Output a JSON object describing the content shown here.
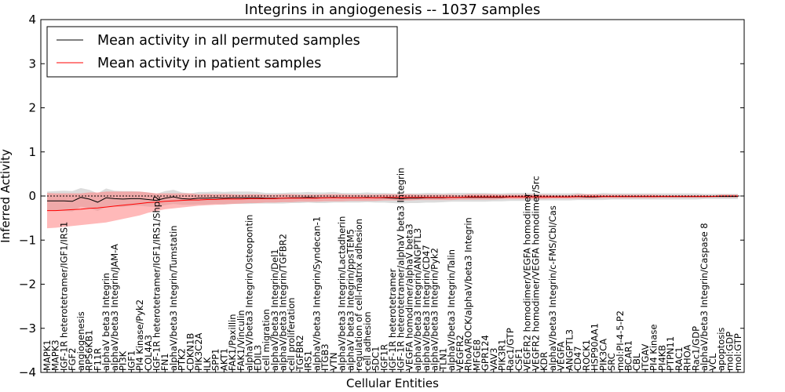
{
  "chart_data": {
    "type": "line",
    "title": "Integrins in angiogenesis -- 1037 samples",
    "xlabel": "Cellular Entities",
    "ylabel": "Inferred Activity",
    "ylim": [
      -4,
      4
    ],
    "yticks": [
      -4,
      -3,
      -2,
      -1,
      0,
      1,
      2,
      3,
      4
    ],
    "grid": false,
    "legend_position": "top-left",
    "colors": {
      "permuted": "#000000",
      "patient": "#ff0000",
      "permuted_band": "#bfbfbf",
      "patient_band": "#ff8080"
    },
    "categories": [
      "MAPK1",
      "MAPK3",
      "IGF-1R heterotetramer/IGF1/IRS1",
      "FGF2",
      "angiogenesis",
      "RPS6KB1",
      "F11R",
      "alphaV beta3 Integrin",
      "alphaV/beta3 Integrin/JAM-A",
      "PI3K",
      "IGF1",
      "PI4 Kinase/Pyk2",
      "COL4A3",
      "IGF-1R heterotetramer/IGF1/IRS1/Shp2",
      "FN1",
      "alphaV/beta3 Integrin/Tumstatin",
      "PTK2",
      "CDKN1B",
      "PIK3C2A",
      "ILK",
      "SPP1",
      "AKT1",
      "FAK1/Paxillin",
      "FAK1/Vinculin",
      "alphaV/beta3 Integrin/Osteopontin",
      "EDIL3",
      "cell migration",
      "alphaV/beta3 Integrin/Del1",
      "alphaV/beta3 Integrin/TGFBR2",
      "cell proliferation",
      "TGFBR2",
      "IRS1",
      "alphaV/beta3 Integrin/Syndecan-1",
      "ITGB3",
      "VTN",
      "alphaV/beta3 Integrin/Lactadherin",
      "alphaV beta3 Integrin/ppsTEM5",
      "regulation of cell-matrix adhesion",
      "cell adhesion",
      "SDC1",
      "IGF1R",
      "IGF-1R heterotetramer",
      "IGF-1R heterotetramer/alphaV beta3 Integrin",
      "VEGFA homodimer/alphaV beta3",
      "alphaV/beta3 Integrin/ANGPTL3",
      "alphaV/beta3 Integrin/CD47",
      "alphaV/beta3 Integrin/Pyk2",
      "TLN1",
      "alphaV/beta3 Integrin/Talin",
      "VEGFR2",
      "RhoA/ROCK/alphaV/beta3 Integrin",
      "MFGE8",
      "GPR124",
      "VAV3",
      "PIK3R1",
      "Rac1/GTP",
      "CSF1",
      "VEGFR2 homodimer/VEGFA homodimer",
      "VEGFR2 homodimer/VEGFA homodimer/Src",
      "KDR",
      "alphaV/beta3 Integrin/c-FMS/Cbl/Cas",
      "VEGFA",
      "ANGPTL3",
      "CD47",
      "ROCK1",
      "HSP90AA1",
      "PIK3CA",
      "SRC",
      "mol:PI-4-5-P2",
      "BCAR1",
      "CBL",
      "ITGAV",
      "PI4 Kinase",
      "PI4KB",
      "PTPN11",
      "RAC1",
      "RHOA",
      "Rac1/GDP",
      "alphaV/beta3 Integrin/Caspase 8",
      "VCL",
      "apoptosis",
      "mol:GDP",
      "mol:GTP"
    ],
    "series": [
      {
        "name": "Mean activity in all permuted samples",
        "values": [
          -0.11,
          -0.11,
          -0.11,
          -0.12,
          -0.03,
          -0.07,
          -0.14,
          -0.04,
          -0.06,
          -0.07,
          -0.06,
          -0.06,
          -0.08,
          -0.1,
          -0.05,
          -0.02,
          -0.06,
          -0.07,
          -0.05,
          -0.05,
          -0.04,
          -0.05,
          -0.04,
          -0.04,
          -0.04,
          -0.04,
          -0.05,
          -0.05,
          -0.05,
          -0.04,
          -0.04,
          -0.03,
          -0.04,
          -0.04,
          -0.03,
          -0.04,
          -0.04,
          -0.04,
          -0.03,
          -0.04,
          -0.04,
          -0.05,
          -0.06,
          -0.05,
          -0.05,
          -0.04,
          -0.04,
          -0.04,
          -0.03,
          -0.03,
          -0.03,
          -0.03,
          -0.03,
          -0.03,
          -0.03,
          -0.02,
          -0.02,
          -0.02,
          -0.02,
          -0.02,
          -0.02,
          -0.02,
          -0.02,
          -0.01,
          -0.02,
          -0.02,
          -0.01,
          -0.01,
          -0.01,
          -0.01,
          -0.01,
          -0.01,
          -0.01,
          -0.01,
          -0.01,
          -0.01,
          -0.01,
          -0.01,
          -0.01,
          -0.01,
          -0.01,
          -0.01,
          -0.01
        ],
        "lower": [
          -0.32,
          -0.33,
          -0.34,
          -0.35,
          -0.24,
          -0.28,
          -0.34,
          -0.25,
          -0.24,
          -0.25,
          -0.23,
          -0.22,
          -0.24,
          -0.25,
          -0.21,
          -0.18,
          -0.2,
          -0.2,
          -0.19,
          -0.19,
          -0.18,
          -0.19,
          -0.18,
          -0.18,
          -0.18,
          -0.17,
          -0.17,
          -0.17,
          -0.17,
          -0.16,
          -0.16,
          -0.15,
          -0.16,
          -0.16,
          -0.15,
          -0.15,
          -0.15,
          -0.15,
          -0.14,
          -0.15,
          -0.15,
          -0.16,
          -0.17,
          -0.16,
          -0.16,
          -0.15,
          -0.15,
          -0.14,
          -0.13,
          -0.13,
          -0.13,
          -0.13,
          -0.13,
          -0.12,
          -0.12,
          -0.11,
          -0.11,
          -0.11,
          -0.1,
          -0.1,
          -0.1,
          -0.1,
          -0.1,
          -0.09,
          -0.09,
          -0.09,
          -0.09,
          -0.08,
          -0.08,
          -0.08,
          -0.08,
          -0.08,
          -0.08,
          -0.08,
          -0.08,
          -0.08,
          -0.08,
          -0.08,
          -0.07,
          -0.07,
          -0.07,
          -0.07,
          -0.07
        ],
        "upper": [
          0.1,
          0.11,
          0.12,
          0.11,
          0.18,
          0.14,
          0.06,
          0.17,
          0.12,
          0.11,
          0.11,
          0.1,
          0.08,
          0.05,
          0.11,
          0.14,
          0.08,
          0.06,
          0.09,
          0.09,
          0.1,
          0.09,
          0.1,
          0.1,
          0.1,
          0.09,
          0.07,
          0.07,
          0.07,
          0.08,
          0.08,
          0.09,
          0.08,
          0.08,
          0.09,
          0.07,
          0.07,
          0.07,
          0.08,
          0.07,
          0.07,
          0.06,
          0.05,
          0.06,
          0.06,
          0.07,
          0.07,
          0.06,
          0.07,
          0.07,
          0.07,
          0.07,
          0.07,
          0.06,
          0.06,
          0.07,
          0.07,
          0.07,
          0.06,
          0.06,
          0.06,
          0.06,
          0.06,
          0.07,
          0.05,
          0.05,
          0.07,
          0.06,
          0.06,
          0.06,
          0.06,
          0.06,
          0.06,
          0.06,
          0.06,
          0.06,
          0.06,
          0.06,
          0.05,
          0.05,
          0.05,
          0.05,
          0.05
        ]
      },
      {
        "name": "Mean activity in patient samples",
        "values": [
          -0.33,
          -0.33,
          -0.32,
          -0.31,
          -0.3,
          -0.28,
          -0.27,
          -0.25,
          -0.23,
          -0.21,
          -0.19,
          -0.17,
          -0.15,
          -0.14,
          -0.12,
          -0.11,
          -0.1,
          -0.09,
          -0.09,
          -0.08,
          -0.08,
          -0.07,
          -0.07,
          -0.07,
          -0.06,
          -0.06,
          -0.06,
          -0.06,
          -0.05,
          -0.05,
          -0.05,
          -0.05,
          -0.05,
          -0.04,
          -0.04,
          -0.04,
          -0.04,
          -0.04,
          -0.04,
          -0.04,
          -0.03,
          -0.03,
          -0.03,
          -0.03,
          -0.03,
          -0.03,
          -0.03,
          -0.03,
          -0.03,
          -0.03,
          -0.02,
          -0.02,
          -0.02,
          -0.02,
          -0.02,
          -0.02,
          -0.02,
          -0.02,
          -0.02,
          -0.02,
          -0.02,
          -0.02,
          -0.02,
          -0.01,
          -0.01,
          -0.01,
          -0.01,
          -0.01,
          -0.01,
          -0.01,
          -0.01,
          -0.01,
          -0.01,
          -0.01,
          -0.01,
          -0.01,
          -0.01,
          -0.01,
          -0.01,
          -0.01,
          0.0,
          0.0,
          0.0
        ],
        "lower": [
          -0.73,
          -0.72,
          -0.7,
          -0.68,
          -0.66,
          -0.64,
          -0.62,
          -0.6,
          -0.56,
          -0.52,
          -0.48,
          -0.44,
          -0.38,
          -0.34,
          -0.3,
          -0.28,
          -0.26,
          -0.24,
          -0.22,
          -0.21,
          -0.2,
          -0.19,
          -0.18,
          -0.17,
          -0.16,
          -0.16,
          -0.15,
          -0.15,
          -0.14,
          -0.14,
          -0.13,
          -0.13,
          -0.13,
          -0.12,
          -0.12,
          -0.12,
          -0.11,
          -0.11,
          -0.11,
          -0.11,
          -0.1,
          -0.1,
          -0.1,
          -0.1,
          -0.09,
          -0.09,
          -0.09,
          -0.09,
          -0.09,
          -0.08,
          -0.08,
          -0.08,
          -0.08,
          -0.08,
          -0.07,
          -0.07,
          -0.07,
          -0.07,
          -0.07,
          -0.07,
          -0.06,
          -0.06,
          -0.06,
          -0.06,
          -0.06,
          -0.06,
          -0.05,
          -0.05,
          -0.05,
          -0.05,
          -0.05,
          -0.05,
          -0.05,
          -0.04,
          -0.04,
          -0.04,
          -0.04,
          -0.04,
          -0.04,
          -0.03,
          -0.03,
          -0.03,
          -0.03
        ],
        "upper": [
          0.07,
          0.06,
          0.06,
          0.06,
          0.06,
          0.08,
          0.08,
          0.1,
          0.1,
          0.1,
          0.1,
          0.1,
          0.08,
          0.06,
          0.06,
          0.06,
          0.06,
          0.06,
          0.04,
          0.05,
          0.04,
          0.05,
          0.04,
          0.03,
          0.04,
          0.04,
          0.03,
          0.03,
          0.04,
          0.04,
          0.03,
          0.03,
          0.03,
          0.04,
          0.04,
          0.04,
          0.03,
          0.03,
          0.03,
          0.03,
          0.04,
          0.04,
          0.04,
          0.04,
          0.03,
          0.03,
          0.03,
          0.03,
          0.03,
          0.02,
          0.04,
          0.04,
          0.04,
          0.04,
          0.03,
          0.03,
          0.03,
          0.03,
          0.03,
          0.03,
          0.02,
          0.02,
          0.02,
          0.04,
          0.04,
          0.04,
          0.03,
          0.03,
          0.03,
          0.03,
          0.03,
          0.03,
          0.03,
          0.02,
          0.02,
          0.02,
          0.02,
          0.02,
          0.02,
          0.01,
          0.03,
          0.03,
          0.03
        ]
      }
    ]
  }
}
